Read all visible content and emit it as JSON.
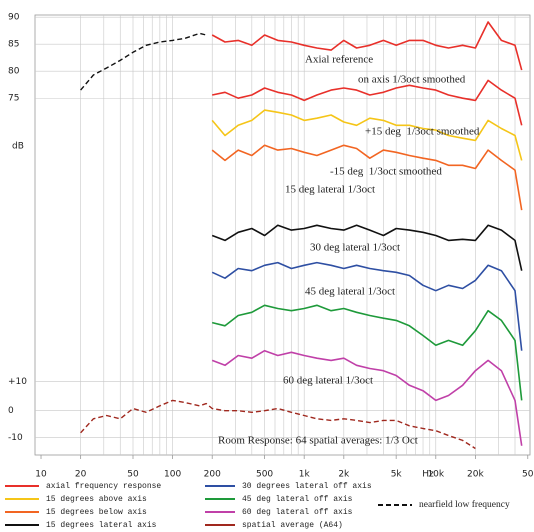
{
  "chart_data": {
    "type": "line",
    "y_label": "dB",
    "x_label": "Hz",
    "x_scale": "log",
    "xlim": [
      9,
      52000
    ],
    "xticks": [
      10,
      20,
      50,
      100,
      200,
      500,
      {
        "value": 1000,
        "label": "1k"
      },
      {
        "value": 2000,
        "label": "2k"
      },
      {
        "value": 5000,
        "label": "5k"
      },
      {
        "value": 10000,
        "label": "10k"
      },
      {
        "value": 20000,
        "label": "20k"
      },
      {
        "value": 50000,
        "label": "50"
      }
    ],
    "xgrid": [
      20,
      30,
      40,
      50,
      60,
      70,
      80,
      90,
      100,
      200,
      300,
      400,
      500,
      600,
      700,
      800,
      900,
      1000,
      2000,
      3000,
      4000,
      5000,
      6000,
      7000,
      8000,
      9000,
      10000,
      20000,
      30000,
      40000
    ],
    "ylim": [
      9,
      90.4
    ],
    "yticks": [
      90,
      85,
      80,
      75,
      {
        "value": 22.6,
        "label": "+10"
      },
      {
        "value": 17.2,
        "label": "0"
      },
      {
        "value": 12.2,
        "label": "-10"
      }
    ],
    "grid": true,
    "x": [
      20,
      25,
      31.5,
      40,
      50,
      63,
      80,
      100,
      125,
      160,
      180,
      200,
      250,
      315,
      400,
      500,
      630,
      800,
      1000,
      1250,
      1600,
      2000,
      2500,
      3150,
      4000,
      5000,
      6300,
      8000,
      10000,
      12500,
      16000,
      20000,
      25000,
      31500,
      40000,
      45000
    ],
    "series": [
      {
        "name": "axial frequency response",
        "color": "#e8302a",
        "values": [
          null,
          null,
          null,
          null,
          null,
          null,
          null,
          null,
          null,
          null,
          null,
          86.7,
          85.4,
          85.7,
          84.8,
          86.7,
          85.7,
          85.4,
          84.8,
          84.3,
          83.9,
          85.7,
          84.3,
          84.8,
          85.7,
          84.8,
          85.7,
          85.7,
          84.8,
          84.3,
          84.8,
          84.3,
          89.1,
          85.7,
          84.8,
          80.2
        ]
      },
      {
        "color": "#e8302a",
        "values": [
          null,
          null,
          null,
          null,
          null,
          null,
          null,
          null,
          null,
          null,
          null,
          75.6,
          76.1,
          75.0,
          75.6,
          76.9,
          76.1,
          75.6,
          74.6,
          75.6,
          76.5,
          76.9,
          76.5,
          75.6,
          76.1,
          76.9,
          77.4,
          76.9,
          76.5,
          75.6,
          75.0,
          74.6,
          78.3,
          76.5,
          75.0,
          70.0
        ]
      },
      {
        "name": "15 degrees above axis",
        "color": "#f5c518",
        "values": [
          null,
          null,
          null,
          null,
          null,
          null,
          null,
          null,
          null,
          null,
          null,
          70.9,
          68.1,
          70.0,
          70.9,
          72.8,
          72.4,
          71.9,
          70.9,
          71.3,
          71.9,
          70.6,
          70.0,
          71.3,
          70.9,
          70.0,
          70.0,
          69.4,
          69.1,
          68.1,
          67.6,
          67.2,
          70.9,
          69.4,
          68.1,
          63.5
        ]
      },
      {
        "name": "15 degrees below axis",
        "color": "#f26522",
        "values": [
          null,
          null,
          null,
          null,
          null,
          null,
          null,
          null,
          null,
          null,
          null,
          65.4,
          63.5,
          65.4,
          64.4,
          66.3,
          65.4,
          65.7,
          65.0,
          64.4,
          65.4,
          66.3,
          65.7,
          63.9,
          65.4,
          65.0,
          64.4,
          63.9,
          63.5,
          62.6,
          62.6,
          62.0,
          65.4,
          63.5,
          61.7,
          54.3
        ]
      },
      {
        "name": "15 degrees lateral axis",
        "color": "#111111",
        "values": [
          null,
          null,
          null,
          null,
          null,
          null,
          null,
          null,
          null,
          null,
          null,
          49.6,
          48.7,
          50.2,
          50.9,
          49.6,
          51.5,
          50.6,
          50.9,
          51.5,
          50.9,
          50.6,
          51.5,
          50.6,
          49.6,
          50.9,
          50.6,
          50.2,
          49.6,
          48.7,
          48.9,
          48.7,
          51.5,
          50.6,
          48.7,
          43.1
        ]
      },
      {
        "name": "30 degrees lateral off axis",
        "color": "#2e4fa3",
        "values": [
          null,
          null,
          null,
          null,
          null,
          null,
          null,
          null,
          null,
          null,
          null,
          42.8,
          41.7,
          43.5,
          43.1,
          44.1,
          44.6,
          43.5,
          44.1,
          44.6,
          44.1,
          43.5,
          44.1,
          43.5,
          43.1,
          42.8,
          42.2,
          40.4,
          39.4,
          40.4,
          39.8,
          41.3,
          44.1,
          43.1,
          39.4,
          28.3
        ]
      },
      {
        "name": "45 deg lateral off axis",
        "color": "#1e9a3a",
        "values": [
          null,
          null,
          null,
          null,
          null,
          null,
          null,
          null,
          null,
          null,
          null,
          33.5,
          32.9,
          34.8,
          35.4,
          36.7,
          36.1,
          35.7,
          36.1,
          36.7,
          35.7,
          36.1,
          35.4,
          34.8,
          34.3,
          33.9,
          32.9,
          31.1,
          29.3,
          30.2,
          29.3,
          32.0,
          35.7,
          33.9,
          30.2,
          19.1
        ]
      },
      {
        "name": "60 deg lateral off axis",
        "color": "#c040a8",
        "values": [
          null,
          null,
          null,
          null,
          null,
          null,
          null,
          null,
          null,
          null,
          null,
          26.5,
          25.6,
          27.4,
          26.9,
          28.3,
          27.4,
          28.0,
          27.4,
          26.9,
          26.5,
          26.9,
          25.6,
          25.0,
          24.6,
          23.7,
          21.9,
          20.9,
          19.1,
          20.0,
          21.9,
          24.6,
          26.5,
          24.6,
          19.1,
          10.7
        ]
      },
      {
        "name": "spatial average (A64)",
        "color": "#a0281e",
        "dash": true,
        "values": [
          13.1,
          15.7,
          16.3,
          15.7,
          17.6,
          16.9,
          18.1,
          19.1,
          18.7,
          18.1,
          18.5,
          17.6,
          17.2,
          17.2,
          16.9,
          17.2,
          17.6,
          16.9,
          16.3,
          15.7,
          15.4,
          15.7,
          15.4,
          15.0,
          15.4,
          15.4,
          14.4,
          13.9,
          13.5,
          12.6,
          11.7,
          10.2,
          null,
          null,
          null,
          null
        ]
      },
      {
        "name": "nearfield low frequency",
        "color": "#111111",
        "dash": true,
        "values": [
          76.5,
          79.3,
          80.6,
          82.0,
          83.5,
          84.8,
          85.4,
          85.7,
          86.1,
          87.0,
          86.7,
          null,
          null,
          null,
          null,
          null,
          null,
          null,
          null,
          null,
          null,
          null,
          null,
          null,
          null,
          null,
          null,
          null,
          null,
          null,
          null,
          null,
          null,
          null,
          null,
          null
        ]
      }
    ],
    "annotations": [
      "Axial reference",
      "on axis 1/3oct smoothed",
      "+15 deg  1/3oct smoothed",
      "-15 deg  1/3oct smoothed",
      "15 deg lateral 1/3oct",
      "30 deg lateral 1/3oct",
      "45 deg lateral 1/3oct",
      "60 deg lateral 1/3oct",
      "Room Response: 64 spatial averages: 1/3 Oct"
    ]
  }
}
